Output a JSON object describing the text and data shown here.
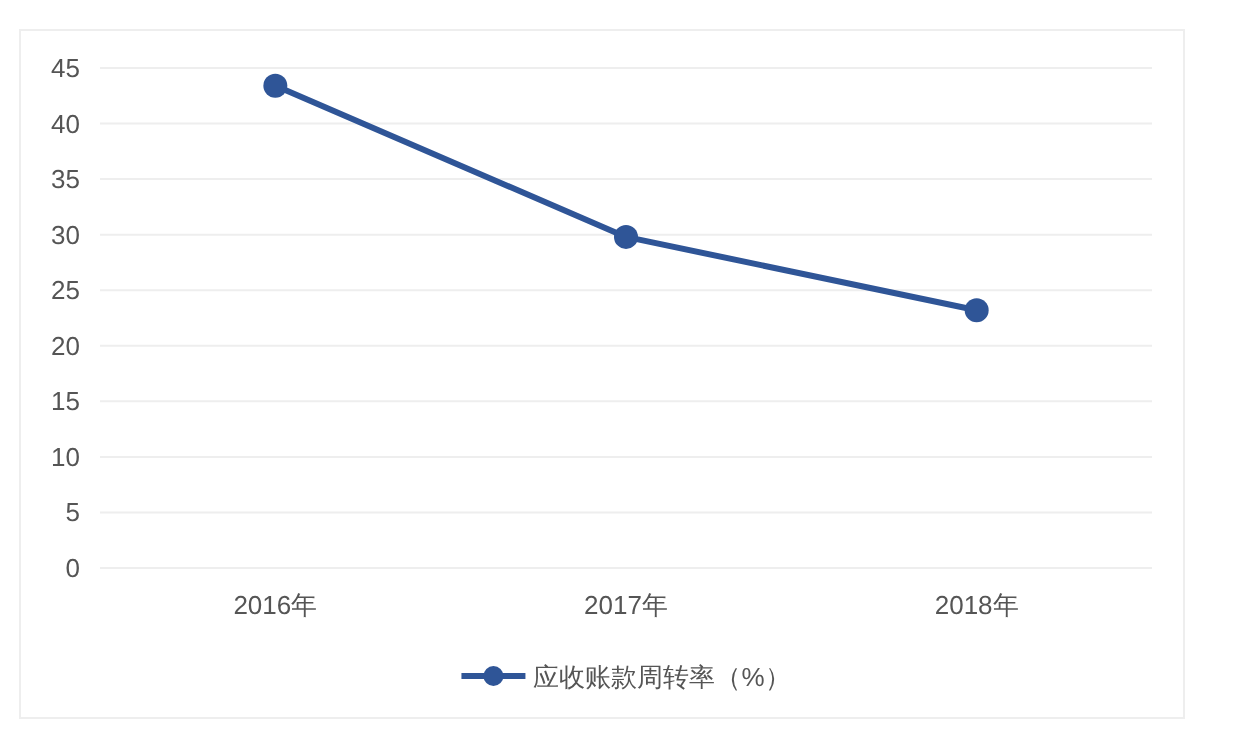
{
  "chart_data": {
    "type": "line",
    "categories": [
      "2016年",
      "2017年",
      "2018年"
    ],
    "series": [
      {
        "name": "应收账款周转率（%）",
        "color": "#2f5597",
        "values": [
          43.4,
          29.8,
          23.2
        ]
      }
    ],
    "ylim": [
      0,
      45
    ],
    "yticks": [
      0,
      5,
      10,
      15,
      20,
      25,
      30,
      35,
      40,
      45
    ],
    "grid": "y",
    "legend": "bottom",
    "marker": "circle",
    "line_style": "solid"
  }
}
